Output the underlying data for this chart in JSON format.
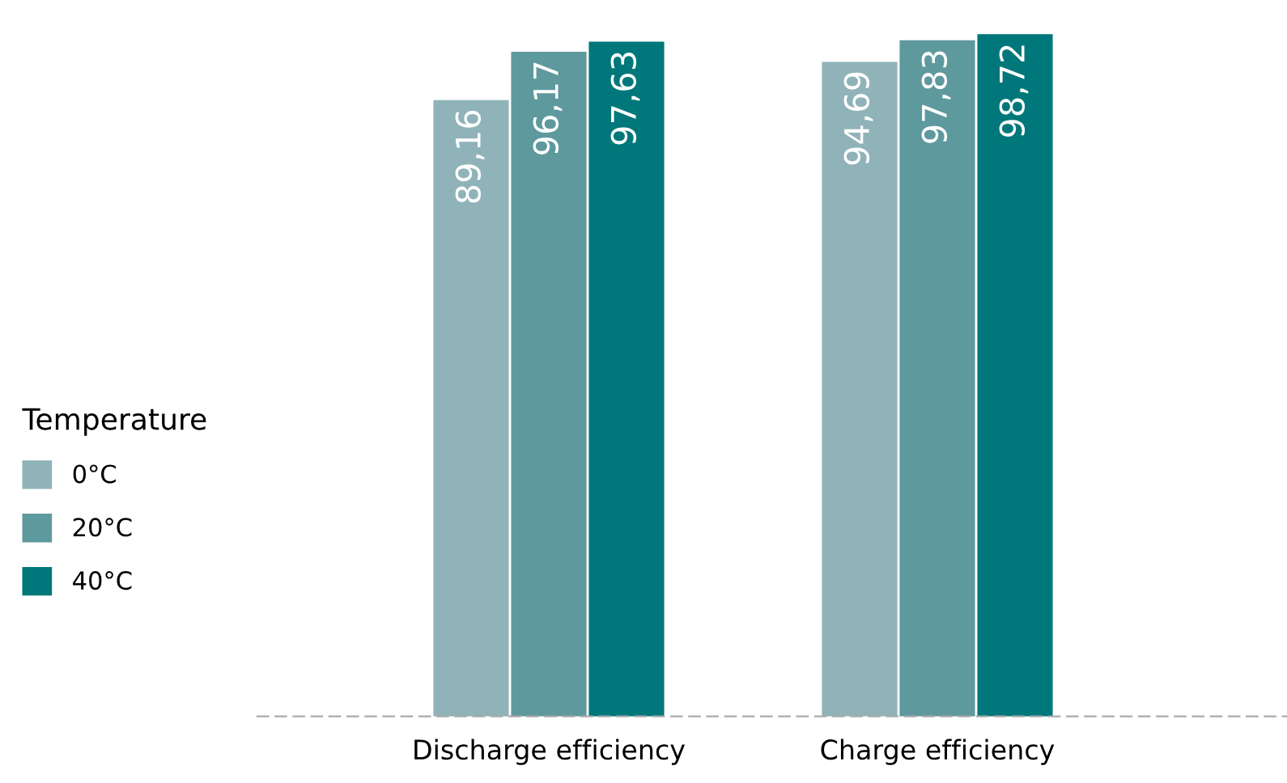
{
  "chart_data": {
    "type": "bar",
    "categories": [
      "Discharge efficiency",
      "Charge efficiency"
    ],
    "legend_title": "Temperature",
    "legend": "left",
    "grid": false,
    "series": [
      {
        "name": "0°C",
        "color": "#8fb3b8",
        "values": [
          89.16,
          94.69
        ],
        "value_labels": [
          "89,16",
          "94,69"
        ]
      },
      {
        "name": "20°C",
        "color": "#5e999e",
        "values": [
          96.17,
          97.83
        ],
        "value_labels": [
          "96,17",
          "97,83"
        ]
      },
      {
        "name": "40°C",
        "color": "#00777a",
        "values": [
          97.63,
          98.72
        ],
        "value_labels": [
          "97,63",
          "98,72"
        ]
      }
    ]
  }
}
